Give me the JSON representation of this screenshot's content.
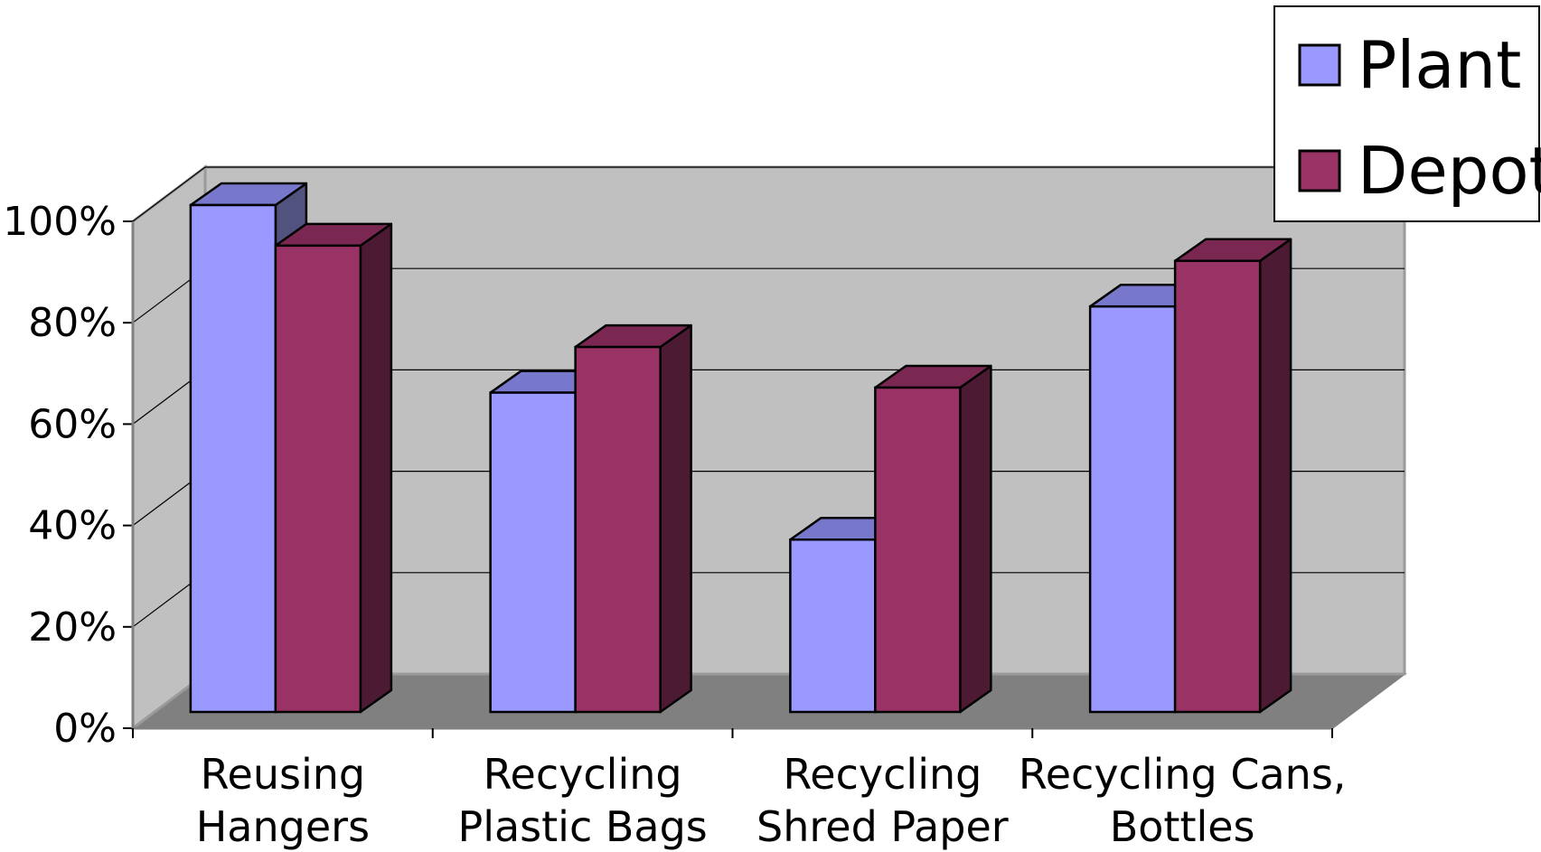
{
  "chart_data": {
    "type": "bar",
    "style": "3d-clustered-column",
    "categories": [
      [
        "Reusing",
        "Hangers"
      ],
      [
        "Recycling",
        "Plastic Bags"
      ],
      [
        "Recycling",
        "Shred Paper"
      ],
      [
        "Recycling Cans,",
        "Bottles"
      ]
    ],
    "series": [
      {
        "name": "Plant",
        "values": [
          100,
          63,
          34,
          80
        ],
        "color": "#9999ff"
      },
      {
        "name": "Depot",
        "values": [
          92,
          72,
          64,
          89
        ],
        "color": "#993366"
      }
    ],
    "ylim": [
      0,
      100
    ],
    "yticks": [
      "0%",
      "20%",
      "40%",
      "60%",
      "80%",
      "100%"
    ],
    "legend": "top-right",
    "grid": true,
    "colors": {
      "back_wall": "#c0c0c0",
      "floor": "#808080",
      "plant_top": "#7777cc",
      "plant_side": "#52527f",
      "depot_top": "#7a2852",
      "depot_side": "#4d1a33"
    }
  }
}
